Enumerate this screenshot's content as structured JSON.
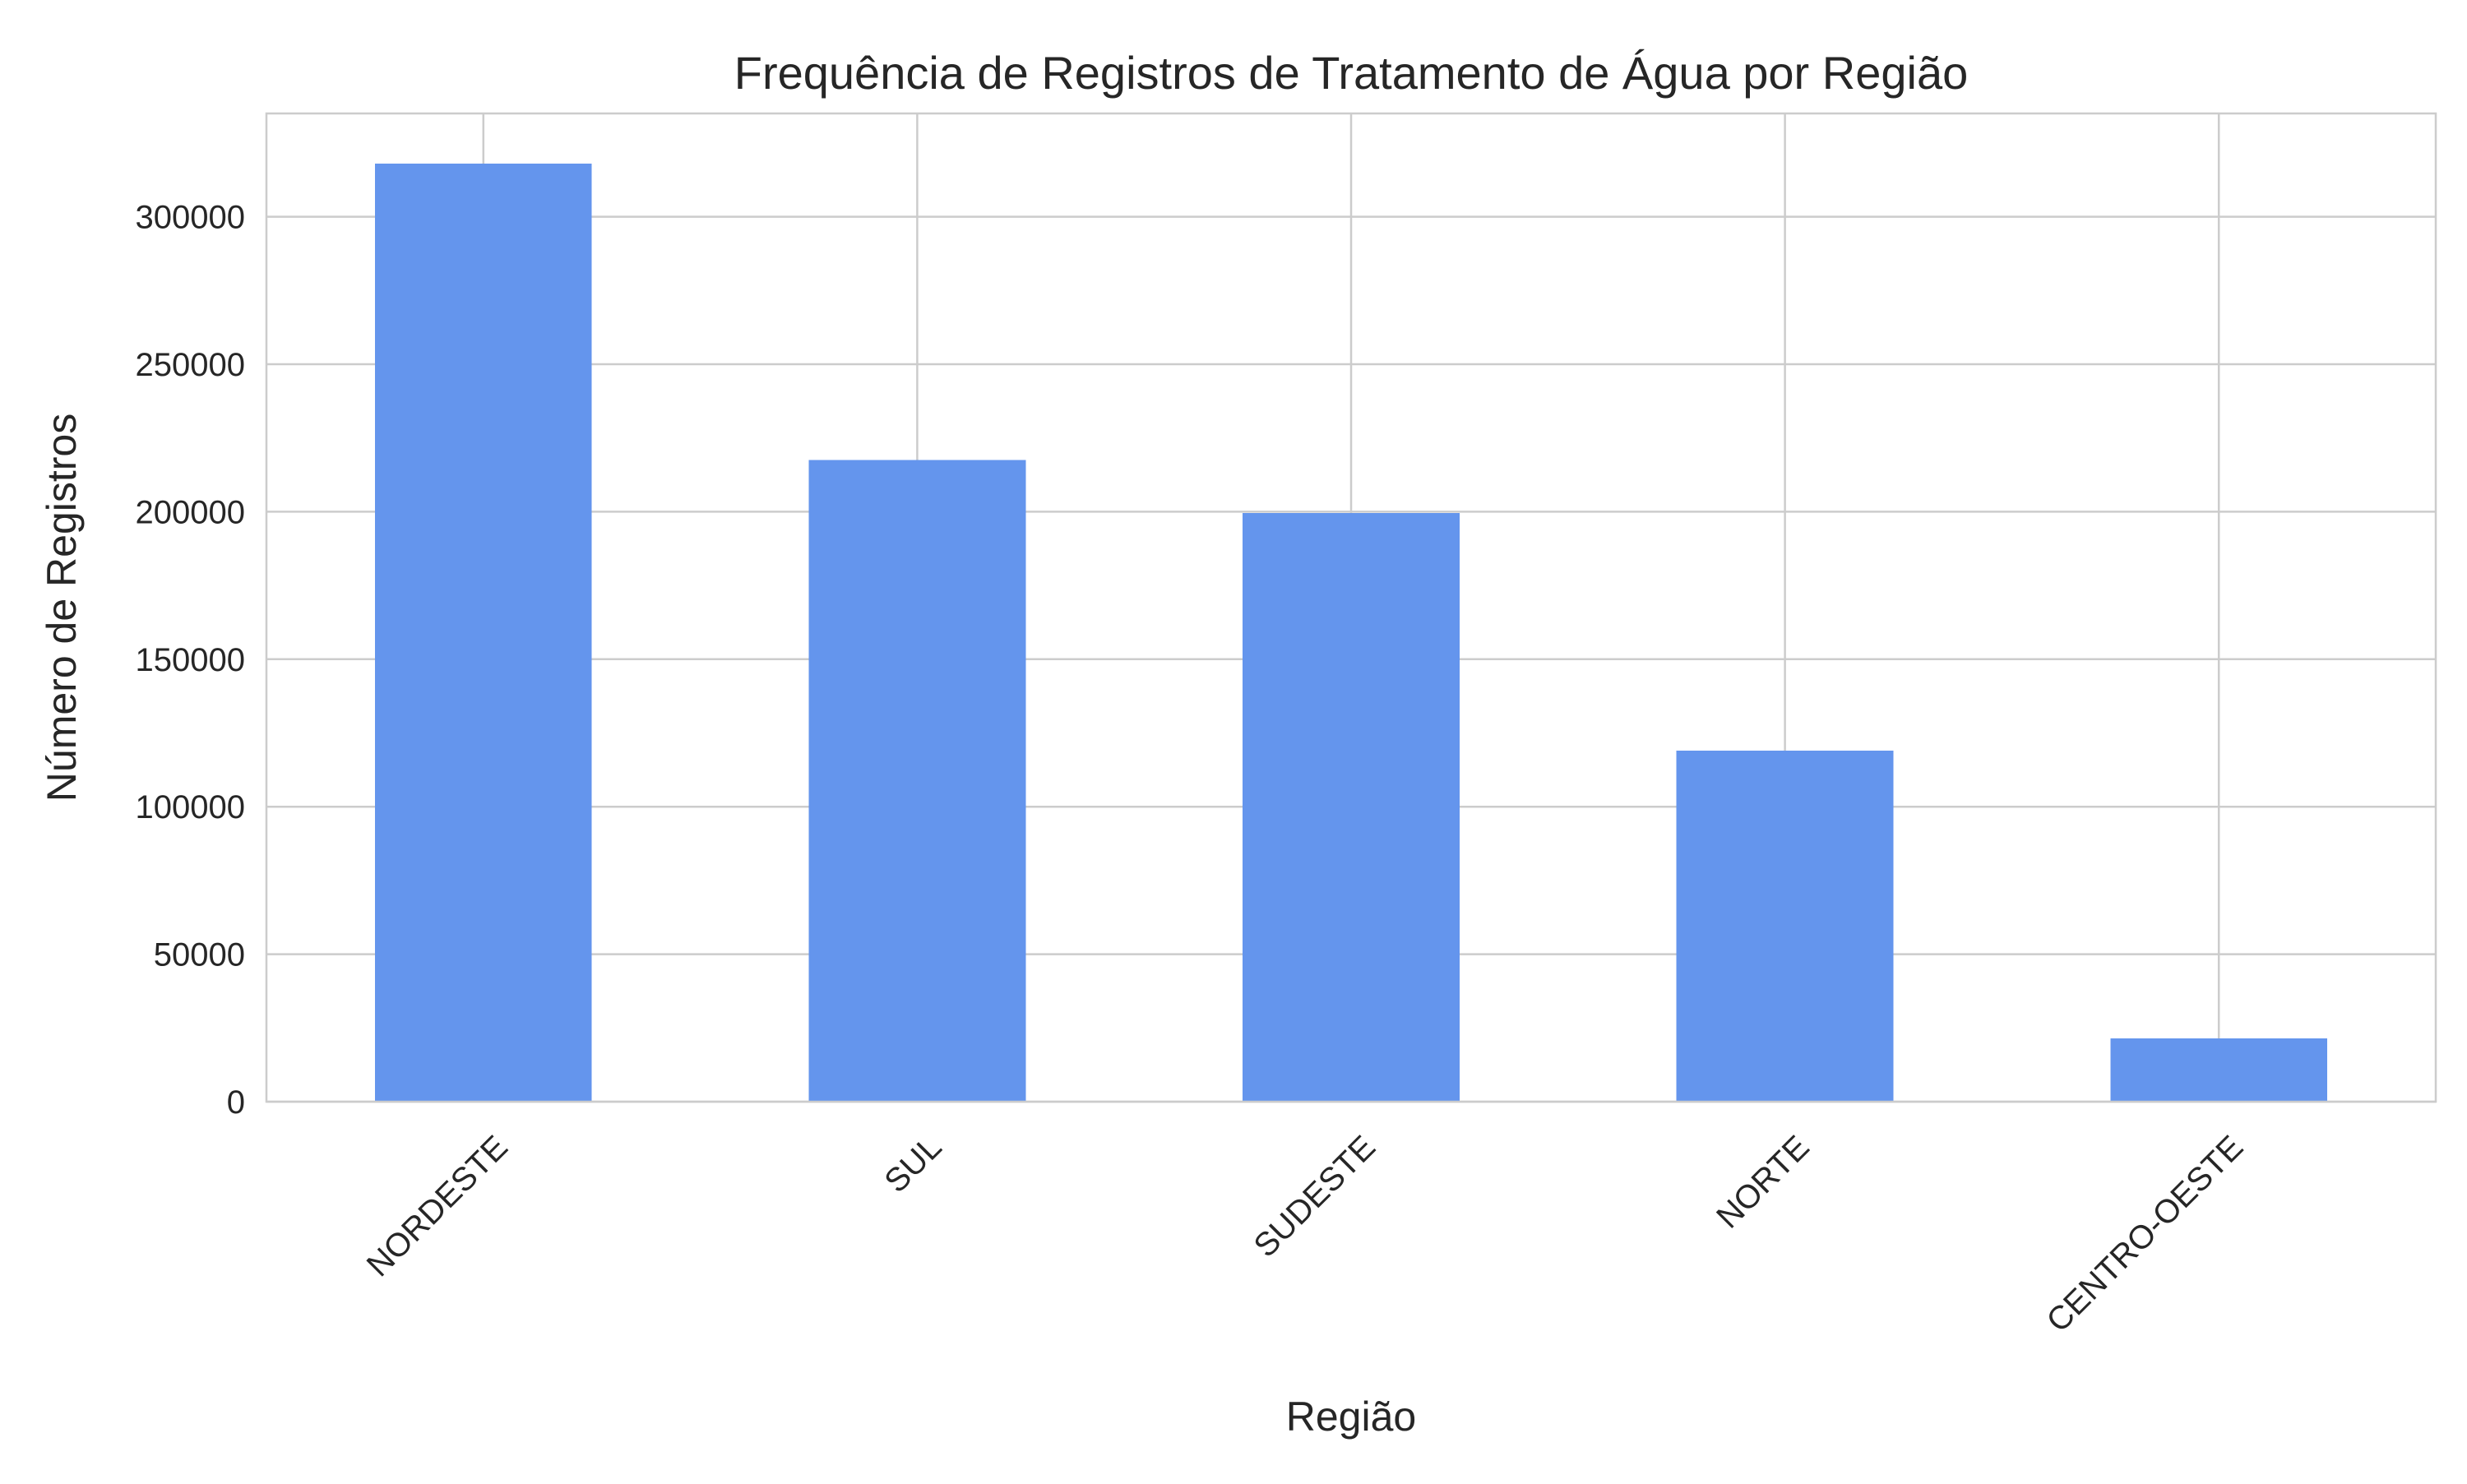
{
  "chart_data": {
    "type": "bar",
    "title": "Frequência de Registros de Tratamento de Água por Região",
    "xlabel": "Região",
    "ylabel": "Número de Registros",
    "categories": [
      "NORDESTE",
      "SUL",
      "SUDESTE",
      "NORTE",
      "CENTRO-OESTE"
    ],
    "values": [
      318000,
      217500,
      199500,
      119000,
      21500
    ],
    "yticks": [
      0,
      50000,
      100000,
      150000,
      200000,
      250000,
      300000
    ],
    "ylim": [
      0,
      335000
    ],
    "grid": true,
    "bar_color": "#6495ED",
    "x_tick_rotation": -45
  }
}
